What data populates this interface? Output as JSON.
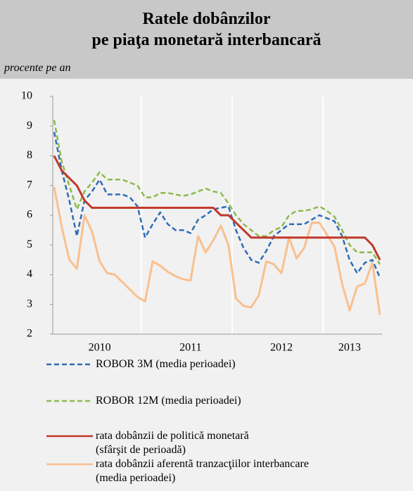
{
  "chart_data": {
    "type": "line",
    "title": "Ratele dobânzilor\npe piaţa monetară interbancară",
    "y_label": "procente pe an",
    "categories": [
      null,
      null,
      null,
      null,
      null,
      null,
      "2010",
      null,
      null,
      null,
      null,
      null,
      null,
      null,
      null,
      null,
      null,
      null,
      "2011",
      null,
      null,
      null,
      null,
      null,
      null,
      null,
      null,
      null,
      null,
      null,
      "2012",
      null,
      null,
      null,
      null,
      null,
      null,
      null,
      null,
      "2013",
      null,
      null,
      null,
      null
    ],
    "ylim": [
      2,
      10
    ],
    "yticks": [
      2,
      3,
      4,
      5,
      6,
      7,
      8,
      9,
      10
    ],
    "grid": "x",
    "series": [
      {
        "name": "ROBOR 3M (media perioadei)",
        "color": "#2f6cb5",
        "style": "dashed",
        "values": [
          8.8,
          7.5,
          6.5,
          5.3,
          6.5,
          6.8,
          7.2,
          6.7,
          6.7,
          6.7,
          6.6,
          6.3,
          5.25,
          5.7,
          6.1,
          5.7,
          5.5,
          5.5,
          5.4,
          5.85,
          6.0,
          6.2,
          6.25,
          6.3,
          5.5,
          4.9,
          4.5,
          4.4,
          4.8,
          5.3,
          5.5,
          5.7,
          5.7,
          5.7,
          5.85,
          6.0,
          5.9,
          5.8,
          5.3,
          4.5,
          4.05,
          4.4,
          4.5,
          3.9
        ]
      },
      {
        "name": "ROBOR 12M (media perioadei)",
        "color": "#8cba4c",
        "style": "dashed",
        "values": [
          9.2,
          7.8,
          7.0,
          6.2,
          6.8,
          7.1,
          7.45,
          7.2,
          7.2,
          7.2,
          7.1,
          7.0,
          6.6,
          6.6,
          6.75,
          6.75,
          6.7,
          6.65,
          6.7,
          6.8,
          6.9,
          6.8,
          6.75,
          6.4,
          6.0,
          5.7,
          5.5,
          5.3,
          5.3,
          5.5,
          5.6,
          6.0,
          6.15,
          6.15,
          6.2,
          6.3,
          6.15,
          5.95,
          5.5,
          5.0,
          4.75,
          4.75,
          4.75,
          4.35
        ]
      },
      {
        "name": "rata dobânzii de politică monetară\n(sfârşit de perioadă)",
        "color": "#c0392b",
        "style": "solid",
        "values": [
          8.0,
          7.5,
          7.25,
          7.0,
          6.5,
          6.25,
          6.25,
          6.25,
          6.25,
          6.25,
          6.25,
          6.25,
          6.25,
          6.25,
          6.25,
          6.25,
          6.25,
          6.25,
          6.25,
          6.25,
          6.25,
          6.25,
          6.0,
          6.0,
          5.75,
          5.5,
          5.25,
          5.25,
          5.25,
          5.25,
          5.25,
          5.25,
          5.25,
          5.25,
          5.25,
          5.25,
          5.25,
          5.25,
          5.25,
          5.25,
          5.25,
          5.25,
          5.0,
          4.5
        ]
      },
      {
        "name": "rata dobânzii aferentă tranzacţiilor interbancare\n(media perioadei)",
        "color": "#f9c08f",
        "style": "solid",
        "values": [
          6.95,
          5.6,
          4.5,
          4.2,
          6.0,
          5.45,
          4.45,
          4.05,
          4.0,
          3.75,
          3.5,
          3.25,
          3.1,
          4.45,
          4.3,
          4.1,
          3.95,
          3.85,
          3.8,
          5.3,
          4.75,
          5.15,
          5.65,
          5.0,
          3.2,
          2.95,
          2.9,
          3.3,
          4.45,
          4.35,
          4.05,
          5.25,
          4.55,
          4.9,
          5.75,
          5.75,
          5.35,
          4.95,
          3.7,
          2.8,
          3.6,
          3.7,
          4.4,
          2.65
        ]
      }
    ]
  }
}
